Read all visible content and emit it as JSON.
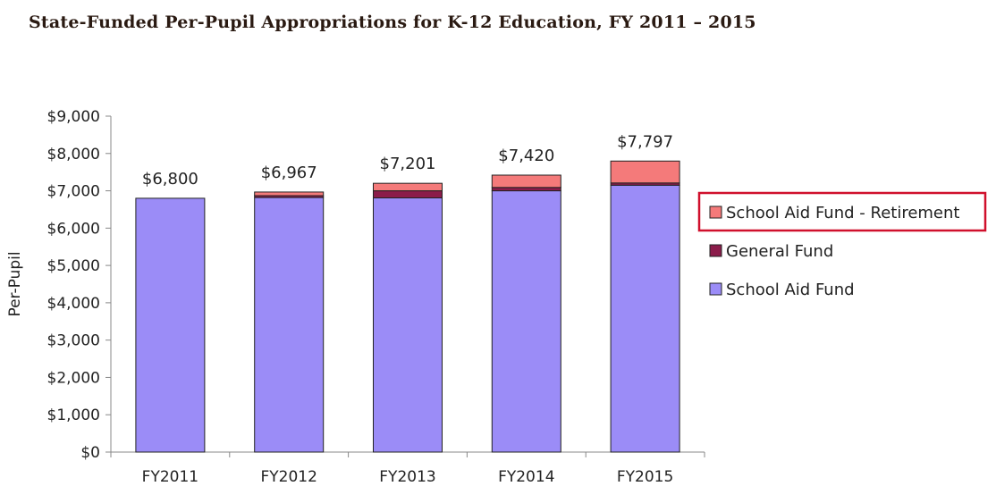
{
  "chart_data": {
    "type": "bar",
    "stacked": true,
    "title": "State-Funded Per-Pupil Appropriations for K-12 Education, FY 2011 – 2015",
    "ylabel": "Per-Pupil",
    "ylim": [
      0,
      9000
    ],
    "ytick_step": 1000,
    "ytick_labels": [
      "$0",
      "$1,000",
      "$2,000",
      "$3,000",
      "$4,000",
      "$5,000",
      "$6,000",
      "$7,000",
      "$8,000",
      "$9,000"
    ],
    "categories": [
      "FY2011",
      "FY2012",
      "FY2013",
      "FY2014",
      "FY2015"
    ],
    "totals": [
      6800,
      6967,
      7201,
      7420,
      7797
    ],
    "total_labels": [
      "$6,800",
      "$6,967",
      "$7,201",
      "$7,420",
      "$7,797"
    ],
    "series": [
      {
        "name": "School Aid Fund",
        "color": "#9b8cf7",
        "values": [
          6800,
          6820,
          6810,
          7000,
          7150
        ]
      },
      {
        "name": "General Fund",
        "color": "#8b1c4a",
        "values": [
          0,
          50,
          190,
          90,
          60
        ]
      },
      {
        "name": "School Aid Fund - Retirement",
        "color": "#f47a7a",
        "values": [
          0,
          97,
          201,
          330,
          587
        ]
      }
    ],
    "legend_position": "right",
    "legend_highlight": "School Aid Fund - Retirement",
    "highlight_color": "#d0102c",
    "grid": false
  }
}
